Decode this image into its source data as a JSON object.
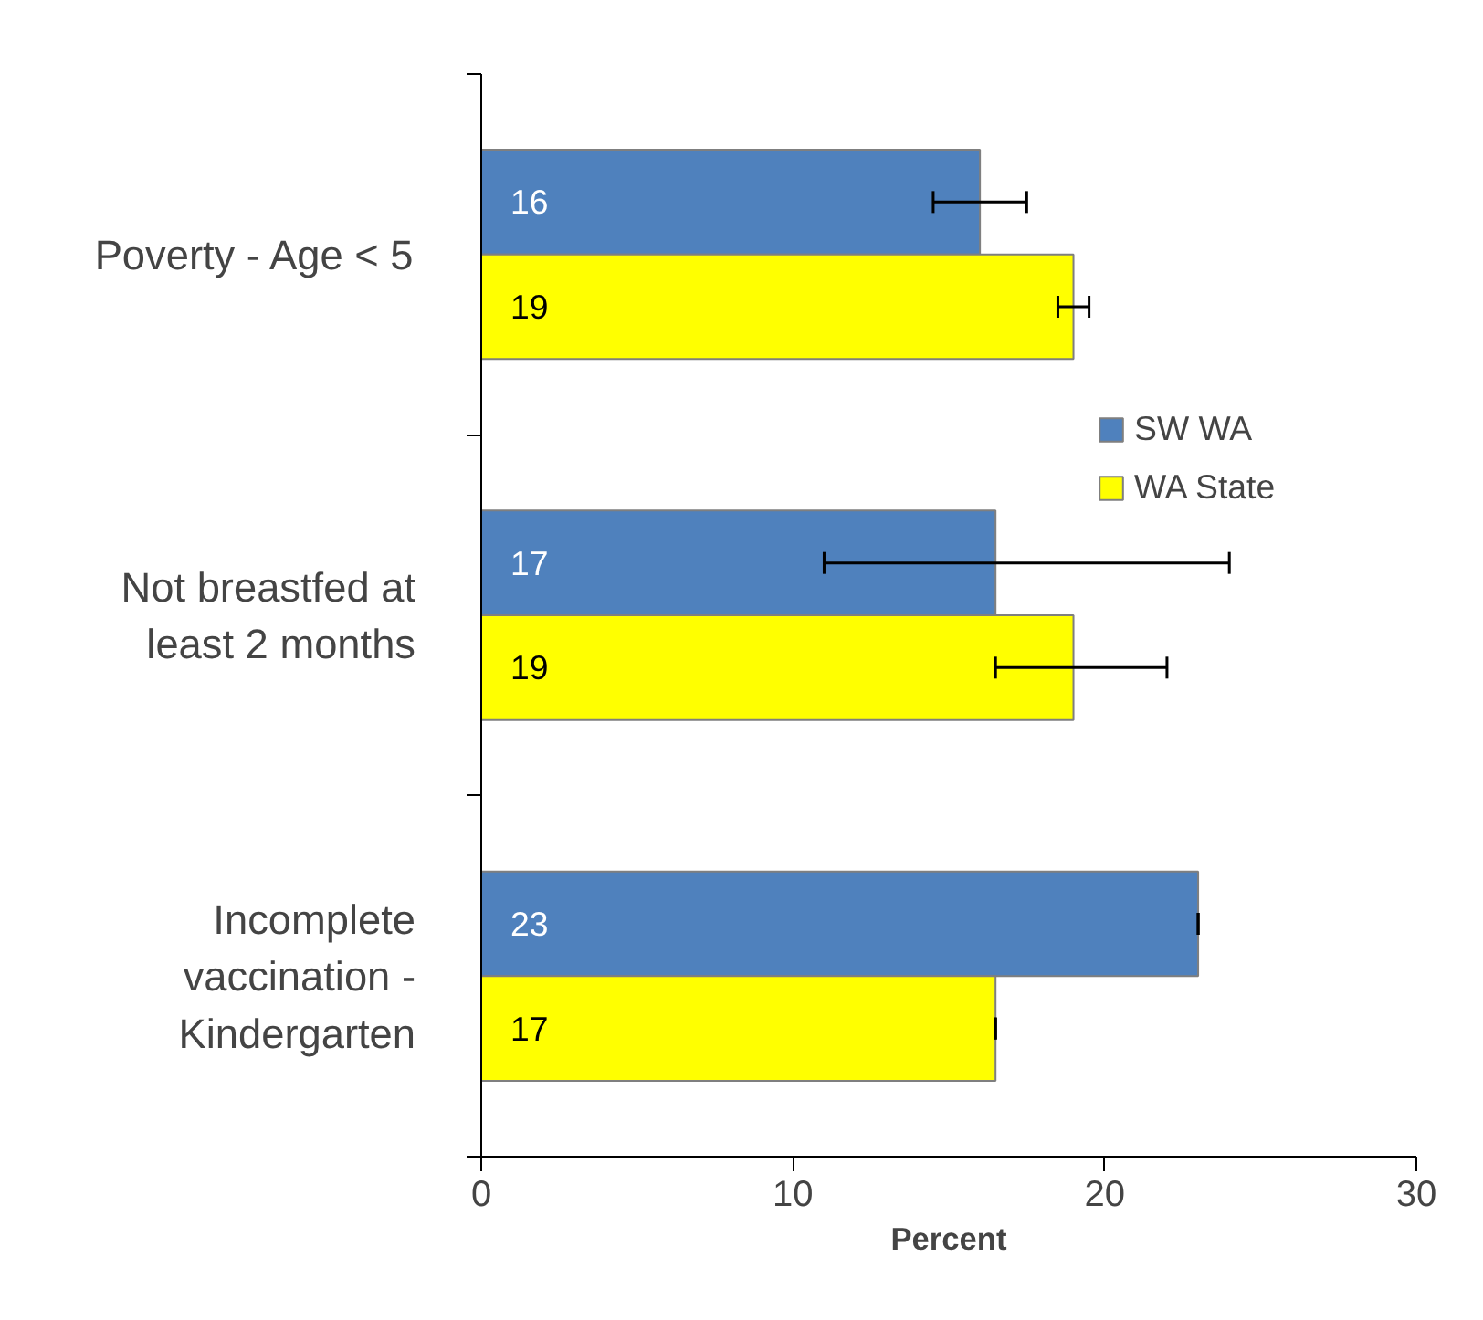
{
  "chart_data": {
    "type": "bar",
    "orientation": "horizontal",
    "xlabel": "Percent",
    "categories": [
      "Poverty - Age < 5",
      "Not breastfed at least 2 months",
      "Incomplete vaccination - Kindergarten"
    ],
    "series": [
      {
        "name": "SW WA",
        "color": "#4f81bd",
        "values": [
          16,
          16.5,
          23
        ],
        "errors": [
          [
            14.5,
            17.5
          ],
          [
            11,
            24
          ],
          0
        ],
        "value_labels": [
          "16",
          "17",
          "23"
        ]
      },
      {
        "name": "WA State",
        "color": "#ffff00",
        "values": [
          19,
          19,
          16.5
        ],
        "errors": [
          [
            18.5,
            19.5
          ],
          [
            16.5,
            22
          ],
          0
        ],
        "value_labels": [
          "19",
          "19",
          "17"
        ]
      }
    ],
    "xlim": [
      0,
      30
    ],
    "xticks": [
      0,
      10,
      20,
      30
    ],
    "grid": false,
    "legend": "right"
  }
}
